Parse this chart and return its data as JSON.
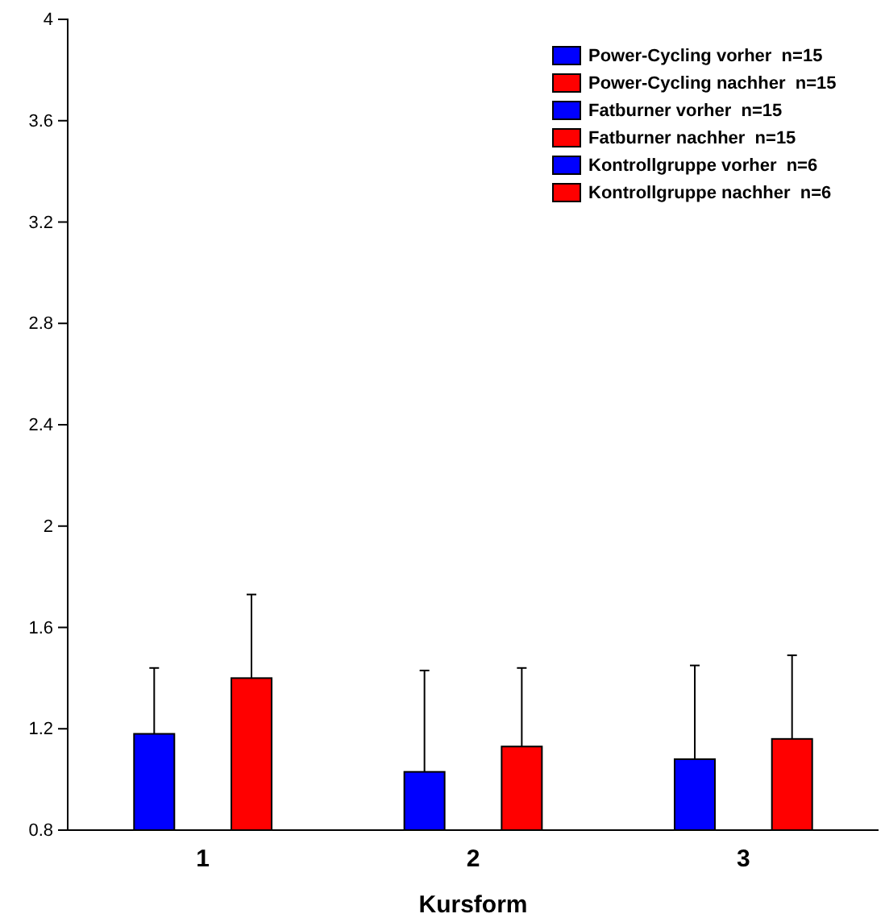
{
  "chart_data": {
    "type": "bar",
    "xlabel": "Kursform",
    "categories": [
      "1",
      "2",
      "3"
    ],
    "ylim": [
      0.8,
      4
    ],
    "yticks": [
      0.8,
      1.2,
      1.6,
      2,
      2.4,
      2.8,
      3.2,
      3.6,
      4
    ],
    "grid": false,
    "legend": "top right",
    "series": [
      {
        "name": "Power-Cycling vorher  n=15",
        "color": "#0000ff",
        "values": [
          1.18,
          null,
          null
        ],
        "errors": [
          [
            1.18,
            1.44
          ],
          null,
          null
        ]
      },
      {
        "name": "Power-Cycling nachher  n=15",
        "color": "#ff0000",
        "values": [
          1.4,
          null,
          null
        ],
        "errors": [
          [
            1.4,
            1.73
          ],
          null,
          null
        ]
      },
      {
        "name": "Fatburner vorher  n=15",
        "color": "#0000ff",
        "values": [
          null,
          1.03,
          null
        ],
        "errors": [
          null,
          [
            1.03,
            1.43
          ],
          null
        ]
      },
      {
        "name": "Fatburner nachher  n=15",
        "color": "#ff0000",
        "values": [
          null,
          1.13,
          null
        ],
        "errors": [
          null,
          [
            1.13,
            1.44
          ],
          null
        ]
      },
      {
        "name": "Kontrollgruppe vorher  n=6",
        "color": "#0000ff",
        "values": [
          null,
          null,
          1.08
        ],
        "errors": [
          null,
          null,
          [
            1.08,
            1.45
          ]
        ]
      },
      {
        "name": "Kontrollgruppe nachher  n=6",
        "color": "#ff0000",
        "values": [
          null,
          null,
          1.16
        ],
        "errors": [
          null,
          null,
          [
            1.16,
            1.49
          ]
        ]
      }
    ]
  }
}
